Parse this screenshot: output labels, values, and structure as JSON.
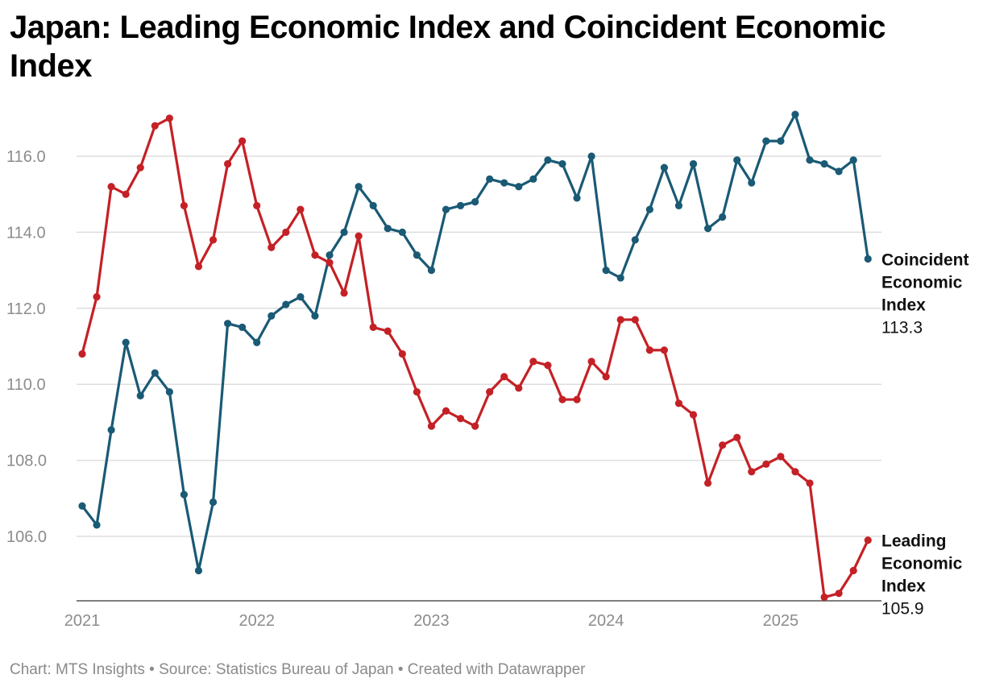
{
  "title": "Japan: Leading Economic Index and Coincident Economic Index",
  "footer": "Chart: MTS Insights • Source: Statistics Bureau of Japan • Created with Datawrapper",
  "chart_data": {
    "type": "line",
    "title": "Japan: Leading Economic Index and Coincident Economic Index",
    "xlabel": "",
    "ylabel": "",
    "x_ticks": [
      "2021",
      "2022",
      "2023",
      "2024",
      "2025"
    ],
    "y_ticks": [
      "106.0",
      "108.0",
      "110.0",
      "112.0",
      "114.0",
      "116.0"
    ],
    "ylim": [
      104.2,
      117.2
    ],
    "grid": true,
    "legend": "direct labels at line ends (right)",
    "x_start": "2021-01",
    "x": [
      "2021-01",
      "2021-02",
      "2021-03",
      "2021-04",
      "2021-05",
      "2021-06",
      "2021-07",
      "2021-08",
      "2021-09",
      "2021-10",
      "2021-11",
      "2021-12",
      "2022-01",
      "2022-02",
      "2022-03",
      "2022-04",
      "2022-05",
      "2022-06",
      "2022-07",
      "2022-08",
      "2022-09",
      "2022-10",
      "2022-11",
      "2022-12",
      "2023-01",
      "2023-02",
      "2023-03",
      "2023-04",
      "2023-05",
      "2023-06",
      "2023-07",
      "2023-08",
      "2023-09",
      "2023-10",
      "2023-11",
      "2023-12",
      "2024-01",
      "2024-02",
      "2024-03",
      "2024-04",
      "2024-05",
      "2024-06",
      "2024-07",
      "2024-08",
      "2024-09",
      "2024-10",
      "2024-11",
      "2024-12",
      "2025-01",
      "2025-02",
      "2025-03",
      "2025-04",
      "2025-05",
      "2025-06",
      "2025-07"
    ],
    "series": [
      {
        "name": "Coincident Economic Index",
        "color": "#1a5a75",
        "end_label": [
          "Coincident",
          "Economic",
          "Index"
        ],
        "end_value": "113.3",
        "values": [
          106.8,
          106.3,
          108.8,
          111.1,
          109.7,
          110.3,
          109.8,
          107.1,
          105.1,
          106.9,
          111.6,
          111.5,
          111.1,
          111.8,
          112.1,
          112.3,
          111.8,
          113.4,
          114.0,
          115.2,
          114.7,
          114.1,
          114.0,
          113.4,
          113.0,
          114.6,
          114.7,
          114.8,
          115.4,
          115.3,
          115.2,
          115.4,
          115.9,
          115.8,
          114.9,
          116.0,
          113.0,
          112.8,
          113.8,
          114.6,
          115.7,
          114.7,
          115.8,
          114.1,
          114.4,
          115.9,
          115.3,
          116.4,
          116.4,
          117.1,
          115.9,
          115.8,
          115.6,
          115.9,
          113.3
        ]
      },
      {
        "name": "Leading Economic Index",
        "color": "#c42126",
        "end_label": [
          "Leading",
          "Economic",
          "Index"
        ],
        "end_value": "105.9",
        "values": [
          110.8,
          112.3,
          115.2,
          115.0,
          115.7,
          116.8,
          117.0,
          114.7,
          113.1,
          113.8,
          115.8,
          116.4,
          114.7,
          113.6,
          114.0,
          114.6,
          113.4,
          113.2,
          112.4,
          113.9,
          111.5,
          111.4,
          110.8,
          109.8,
          108.9,
          109.3,
          109.1,
          108.9,
          109.8,
          110.2,
          109.9,
          110.6,
          110.5,
          109.6,
          109.6,
          110.6,
          110.2,
          111.7,
          111.7,
          110.9,
          110.9,
          109.5,
          109.2,
          107.4,
          108.4,
          108.6,
          107.7,
          107.9,
          108.1,
          107.7,
          107.4,
          104.4,
          104.5,
          105.1,
          105.9
        ]
      }
    ]
  }
}
